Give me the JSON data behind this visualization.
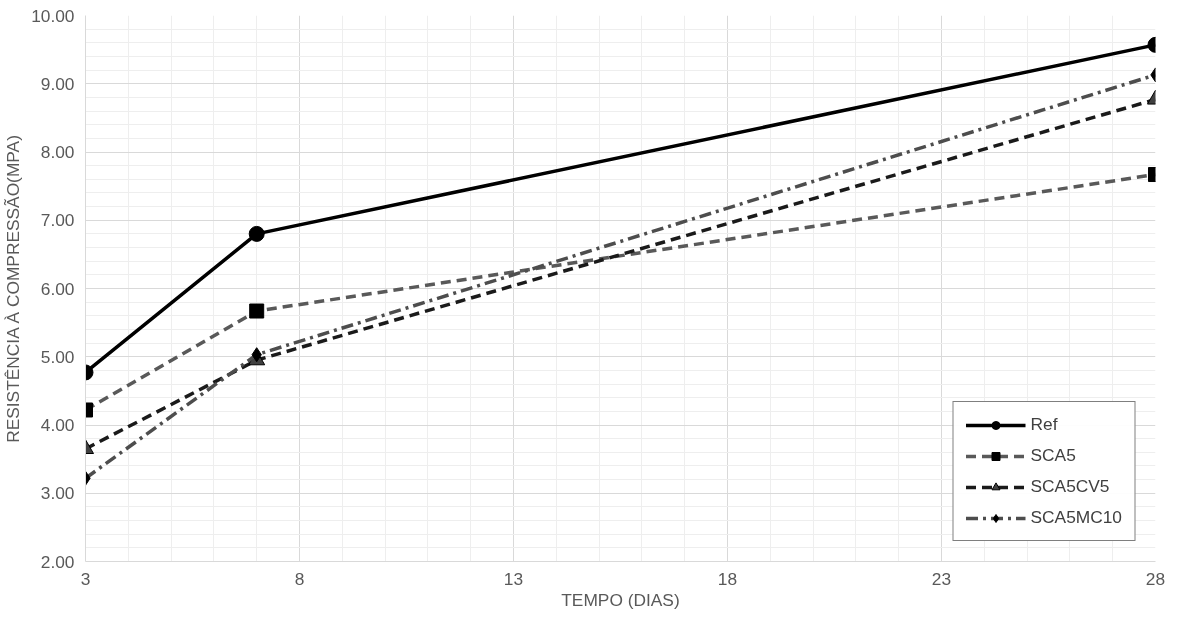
{
  "chart_data": {
    "type": "line",
    "xlabel": "TEMPO (DIAS)",
    "ylabel": "RESISTÊNCIA À COMPRESSÃO(MPA)",
    "x": [
      3,
      7,
      28
    ],
    "series": [
      {
        "name": "Ref",
        "color": "#000000",
        "values": [
          4.77,
          6.8,
          9.57
        ],
        "marker": "circle",
        "line_style": "solid"
      },
      {
        "name": "SCA5",
        "color": "#595959",
        "values": [
          4.22,
          5.67,
          7.67
        ],
        "marker": "square",
        "line_style": "dashed"
      },
      {
        "name": "SCA5CV5",
        "color": "#1a1a1a",
        "values": [
          3.65,
          4.95,
          8.77
        ],
        "marker": "triangle",
        "line_style": "dashed"
      },
      {
        "name": "SCA5MC10",
        "color": "#4d4d4d",
        "values": [
          3.22,
          5.03,
          9.13
        ],
        "marker": "diamond",
        "line_style": "dashdot"
      }
    ],
    "xlim": [
      3,
      28
    ],
    "xticks": [
      3,
      8,
      13,
      18,
      23,
      28
    ],
    "ylim": [
      2,
      10
    ],
    "yticks": [
      {
        "value": 2,
        "label": "2.00"
      },
      {
        "value": 3,
        "label": "3.00"
      },
      {
        "value": 4,
        "label": "4.00"
      },
      {
        "value": 5,
        "label": "5.00"
      },
      {
        "value": 6,
        "label": "6.00"
      },
      {
        "value": 7,
        "label": "7.00"
      },
      {
        "value": 8,
        "label": "8.00"
      },
      {
        "value": 9,
        "label": "9.00"
      },
      {
        "value": 10,
        "label": "10.00"
      }
    ],
    "grid": true,
    "legend": "bottom right"
  }
}
